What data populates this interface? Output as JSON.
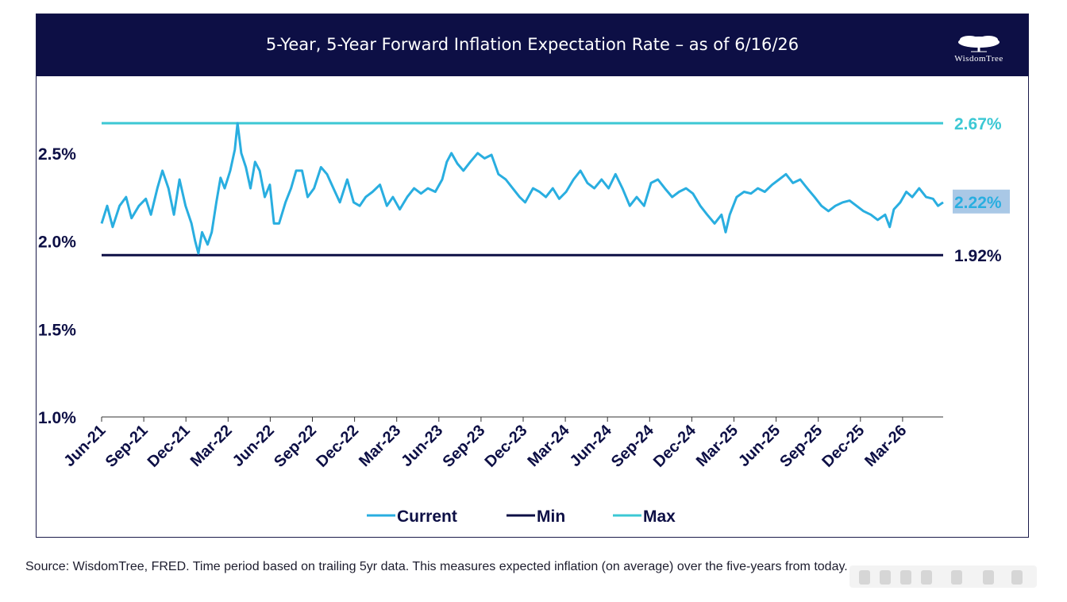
{
  "header": {
    "title": "5-Year, 5-Year Forward Inflation Expectation Rate – as of 6/16/26",
    "logo_text": "WisdomTree"
  },
  "colors": {
    "header_bg": "#0d0f45",
    "current": "#29aee0",
    "min": "#0d0f45",
    "max": "#3cc8d4",
    "end_label_bg": "#a9c8e6"
  },
  "chart_data": {
    "type": "line",
    "ylim": [
      1.0,
      2.7
    ],
    "y_ticks": [
      1.0,
      1.5,
      2.0,
      2.5
    ],
    "y_tick_labels": [
      "1.0%",
      "1.5%",
      "2.0%",
      "2.5%"
    ],
    "x_tick_labels": [
      "Jun-21",
      "Sep-21",
      "Dec-21",
      "Mar-22",
      "Jun-22",
      "Sep-22",
      "Dec-22",
      "Mar-23",
      "Jun-23",
      "Sep-23",
      "Dec-23",
      "Mar-24",
      "Jun-24",
      "Sep-24",
      "Dec-24",
      "Mar-25",
      "Jun-25",
      "Sep-25",
      "Dec-25",
      "Mar-26"
    ],
    "x_range": [
      "2021-06-16",
      "2026-06-16"
    ],
    "legend_position": "bottom",
    "series": [
      {
        "name": "Current",
        "points": [
          [
            "2021-06-16",
            2.1
          ],
          [
            "2021-06-28",
            2.2
          ],
          [
            "2021-07-10",
            2.08
          ],
          [
            "2021-07-25",
            2.2
          ],
          [
            "2021-08-08",
            2.25
          ],
          [
            "2021-08-20",
            2.13
          ],
          [
            "2021-09-05",
            2.2
          ],
          [
            "2021-09-20",
            2.24
          ],
          [
            "2021-10-01",
            2.15
          ],
          [
            "2021-10-15",
            2.3
          ],
          [
            "2021-10-26",
            2.4
          ],
          [
            "2021-11-08",
            2.3
          ],
          [
            "2021-11-20",
            2.15
          ],
          [
            "2021-12-02",
            2.35
          ],
          [
            "2021-12-15",
            2.2
          ],
          [
            "2021-12-28",
            2.1
          ],
          [
            "2022-01-05",
            2.0
          ],
          [
            "2022-01-12",
            1.93
          ],
          [
            "2022-01-20",
            2.05
          ],
          [
            "2022-02-01",
            1.98
          ],
          [
            "2022-02-10",
            2.05
          ],
          [
            "2022-02-20",
            2.22
          ],
          [
            "2022-03-01",
            2.36
          ],
          [
            "2022-03-10",
            2.3
          ],
          [
            "2022-03-22",
            2.4
          ],
          [
            "2022-04-01",
            2.52
          ],
          [
            "2022-04-07",
            2.67
          ],
          [
            "2022-04-15",
            2.5
          ],
          [
            "2022-04-25",
            2.42
          ],
          [
            "2022-05-05",
            2.3
          ],
          [
            "2022-05-15",
            2.45
          ],
          [
            "2022-05-25",
            2.4
          ],
          [
            "2022-06-05",
            2.25
          ],
          [
            "2022-06-16",
            2.32
          ],
          [
            "2022-06-25",
            2.1
          ],
          [
            "2022-07-06",
            2.1
          ],
          [
            "2022-07-20",
            2.22
          ],
          [
            "2022-08-01",
            2.3
          ],
          [
            "2022-08-12",
            2.4
          ],
          [
            "2022-08-25",
            2.4
          ],
          [
            "2022-09-06",
            2.25
          ],
          [
            "2022-09-20",
            2.3
          ],
          [
            "2022-10-05",
            2.42
          ],
          [
            "2022-10-18",
            2.38
          ],
          [
            "2022-11-01",
            2.3
          ],
          [
            "2022-11-15",
            2.22
          ],
          [
            "2022-12-01",
            2.35
          ],
          [
            "2022-12-15",
            2.22
          ],
          [
            "2022-12-28",
            2.2
          ],
          [
            "2023-01-10",
            2.25
          ],
          [
            "2023-01-25",
            2.28
          ],
          [
            "2023-02-10",
            2.32
          ],
          [
            "2023-02-25",
            2.2
          ],
          [
            "2023-03-10",
            2.25
          ],
          [
            "2023-03-25",
            2.18
          ],
          [
            "2023-04-10",
            2.25
          ],
          [
            "2023-04-25",
            2.3
          ],
          [
            "2023-05-10",
            2.27
          ],
          [
            "2023-05-25",
            2.3
          ],
          [
            "2023-06-10",
            2.28
          ],
          [
            "2023-06-25",
            2.35
          ],
          [
            "2023-07-05",
            2.45
          ],
          [
            "2023-07-15",
            2.5
          ],
          [
            "2023-07-28",
            2.44
          ],
          [
            "2023-08-10",
            2.4
          ],
          [
            "2023-08-25",
            2.45
          ],
          [
            "2023-09-10",
            2.5
          ],
          [
            "2023-09-25",
            2.47
          ],
          [
            "2023-10-10",
            2.49
          ],
          [
            "2023-10-25",
            2.38
          ],
          [
            "2023-11-10",
            2.35
          ],
          [
            "2023-11-25",
            2.3
          ],
          [
            "2023-12-10",
            2.25
          ],
          [
            "2023-12-22",
            2.22
          ],
          [
            "2024-01-08",
            2.3
          ],
          [
            "2024-01-22",
            2.28
          ],
          [
            "2024-02-05",
            2.25
          ],
          [
            "2024-02-20",
            2.3
          ],
          [
            "2024-03-05",
            2.24
          ],
          [
            "2024-03-20",
            2.28
          ],
          [
            "2024-04-05",
            2.35
          ],
          [
            "2024-04-20",
            2.4
          ],
          [
            "2024-05-05",
            2.33
          ],
          [
            "2024-05-20",
            2.3
          ],
          [
            "2024-06-05",
            2.35
          ],
          [
            "2024-06-20",
            2.3
          ],
          [
            "2024-07-05",
            2.38
          ],
          [
            "2024-07-20",
            2.3
          ],
          [
            "2024-08-05",
            2.2
          ],
          [
            "2024-08-20",
            2.25
          ],
          [
            "2024-09-05",
            2.2
          ],
          [
            "2024-09-20",
            2.33
          ],
          [
            "2024-10-05",
            2.35
          ],
          [
            "2024-10-20",
            2.3
          ],
          [
            "2024-11-05",
            2.25
          ],
          [
            "2024-11-20",
            2.28
          ],
          [
            "2024-12-05",
            2.3
          ],
          [
            "2024-12-20",
            2.27
          ],
          [
            "2025-01-05",
            2.2
          ],
          [
            "2025-01-20",
            2.15
          ],
          [
            "2025-02-05",
            2.1
          ],
          [
            "2025-02-20",
            2.15
          ],
          [
            "2025-03-01",
            2.05
          ],
          [
            "2025-03-10",
            2.15
          ],
          [
            "2025-03-25",
            2.25
          ],
          [
            "2025-04-10",
            2.28
          ],
          [
            "2025-04-25",
            2.27
          ],
          [
            "2025-05-10",
            2.3
          ],
          [
            "2025-05-25",
            2.28
          ],
          [
            "2025-06-10",
            2.32
          ],
          [
            "2025-06-25",
            2.35
          ],
          [
            "2025-07-10",
            2.38
          ],
          [
            "2025-07-25",
            2.33
          ],
          [
            "2025-08-10",
            2.35
          ],
          [
            "2025-08-25",
            2.3
          ],
          [
            "2025-09-10",
            2.25
          ],
          [
            "2025-09-25",
            2.2
          ],
          [
            "2025-10-10",
            2.17
          ],
          [
            "2025-10-25",
            2.2
          ],
          [
            "2025-11-10",
            2.22
          ],
          [
            "2025-11-25",
            2.23
          ],
          [
            "2025-12-10",
            2.2
          ],
          [
            "2025-12-25",
            2.17
          ],
          [
            "2026-01-10",
            2.15
          ],
          [
            "2026-01-25",
            2.12
          ],
          [
            "2026-02-10",
            2.15
          ],
          [
            "2026-02-20",
            2.08
          ],
          [
            "2026-03-01",
            2.18
          ],
          [
            "2026-03-15",
            2.22
          ],
          [
            "2026-03-28",
            2.28
          ],
          [
            "2026-04-10",
            2.25
          ],
          [
            "2026-04-25",
            2.3
          ],
          [
            "2026-05-10",
            2.25
          ],
          [
            "2026-05-25",
            2.24
          ],
          [
            "2026-06-05",
            2.2
          ],
          [
            "2026-06-16",
            2.22
          ]
        ]
      },
      {
        "name": "Min",
        "value": 1.92
      },
      {
        "name": "Max",
        "value": 2.67
      }
    ],
    "end_labels": {
      "max": "2.67%",
      "current": "2.22%",
      "min": "1.92%"
    }
  },
  "legend": [
    {
      "label": "Current",
      "color": "#29aee0"
    },
    {
      "label": "Min",
      "color": "#0d0f45"
    },
    {
      "label": "Max",
      "color": "#3cc8d4"
    }
  ],
  "footer": {
    "source": "Source: WisdomTree, FRED. Time period based on trailing 5yr data. This measures expected inflation (on average) over the five-years from today."
  }
}
